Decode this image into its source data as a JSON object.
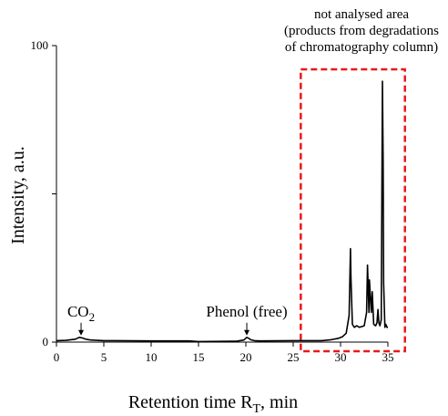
{
  "chart_data": {
    "type": "line",
    "title": "",
    "xlabel": "Retention time R",
    "xlabel_subscript": "T",
    "xlabel_suffix": ", min",
    "ylabel": "Intensity, a.u.",
    "xlim": [
      0,
      35
    ],
    "ylim": [
      0,
      100
    ],
    "x_ticks": [
      0,
      5,
      10,
      15,
      20,
      25,
      30,
      35
    ],
    "y_ticks": [
      0,
      100
    ],
    "y_ticks_minor": [
      50
    ],
    "grid": false,
    "legend": "none",
    "series": [
      {
        "color": "#000000",
        "x": [
          0,
          1,
          2,
          2.4,
          2.7,
          3.1,
          3.6,
          5,
          10,
          14,
          15,
          19,
          19.8,
          20.1,
          20.3,
          20.5,
          20.9,
          21.5,
          25,
          28,
          29,
          29.8,
          30.2,
          30.6,
          30.9,
          31.05,
          31.1,
          31.25,
          31.45,
          31.7,
          32,
          32.5,
          32.75,
          32.85,
          33.0,
          33.05,
          33.25,
          33.35,
          33.5,
          33.7,
          33.85,
          33.95,
          34.05,
          34.15,
          34.3,
          34.42,
          34.5,
          34.55,
          34.68,
          34.78,
          34.9,
          35.0
        ],
        "y": [
          0.5,
          0.6,
          1.0,
          1.6,
          1.4,
          1.0,
          0.7,
          0.5,
          0.4,
          0.4,
          0.2,
          0.3,
          0.7,
          1.6,
          1.3,
          0.8,
          0.5,
          0.4,
          0.5,
          0.5,
          0.8,
          1.3,
          1.8,
          3.0,
          9.0,
          31.5,
          22.0,
          6.0,
          5.0,
          5.5,
          5.0,
          5.5,
          10.0,
          26.0,
          10.0,
          21.0,
          10.0,
          17.0,
          6.0,
          5.5,
          6.5,
          11.0,
          6.5,
          5.5,
          7.5,
          88.0,
          60.0,
          20.0,
          5.0,
          6.0,
          5.0,
          5.0
        ]
      }
    ],
    "annotations": [
      {
        "label": "CO",
        "subscript": "2",
        "x": 2.6,
        "y": 1.6,
        "arrow": true
      },
      {
        "label": "Phenol (free)",
        "x": 20.1,
        "y": 1.6,
        "arrow": true
      }
    ],
    "region": {
      "x_start": 25.8,
      "x_end": 36.8,
      "y_top": 92,
      "color": "#e8191c",
      "label_lines": [
        "not analysed area",
        "(products from degradations",
        "of chromatography column)"
      ]
    }
  }
}
